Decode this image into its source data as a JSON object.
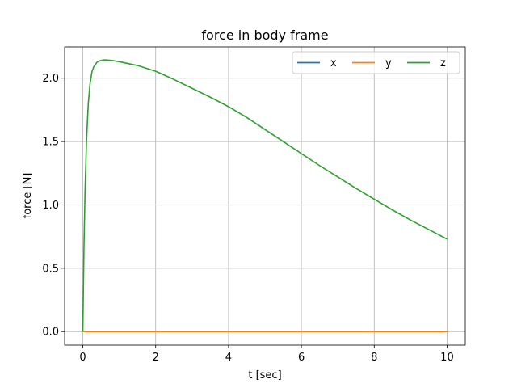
{
  "chart_data": {
    "type": "line",
    "title": "force in body frame",
    "xlabel": "t [sec]",
    "ylabel": "force [N]",
    "xlim": [
      -0.5,
      10.5
    ],
    "ylim": [
      -0.107,
      2.247
    ],
    "xticks": [
      0,
      2,
      4,
      6,
      8,
      10
    ],
    "xtick_labels": [
      "0",
      "2",
      "4",
      "6",
      "8",
      "10"
    ],
    "yticks": [
      0.0,
      0.5,
      1.0,
      1.5,
      2.0
    ],
    "ytick_labels": [
      "0.0",
      "0.5",
      "1.0",
      "1.5",
      "2.0"
    ],
    "grid": true,
    "legend": {
      "placement": "top-right",
      "ncol": 3
    },
    "series": [
      {
        "name": "x",
        "color": "#1f77b4",
        "x": [
          0,
          10
        ],
        "y": [
          0,
          0
        ]
      },
      {
        "name": "y",
        "color": "#ff7f0e",
        "x": [
          0,
          10
        ],
        "y": [
          0,
          0
        ]
      },
      {
        "name": "z",
        "color": "#2ca02c",
        "x": [
          0,
          0.03,
          0.06,
          0.1,
          0.15,
          0.2,
          0.25,
          0.3,
          0.4,
          0.5,
          0.6,
          0.8,
          1.0,
          1.5,
          2.0,
          2.5,
          3.0,
          3.5,
          4.0,
          4.5,
          5.0,
          5.5,
          6.0,
          6.5,
          7.0,
          7.5,
          8.0,
          8.5,
          9.0,
          9.5,
          10.0
        ],
        "y": [
          0,
          0.65,
          1.1,
          1.5,
          1.8,
          1.96,
          2.05,
          2.09,
          2.13,
          2.14,
          2.145,
          2.14,
          2.13,
          2.1,
          2.055,
          1.99,
          1.92,
          1.85,
          1.775,
          1.69,
          1.595,
          1.5,
          1.405,
          1.31,
          1.22,
          1.13,
          1.045,
          0.96,
          0.88,
          0.805,
          0.73
        ]
      }
    ]
  }
}
